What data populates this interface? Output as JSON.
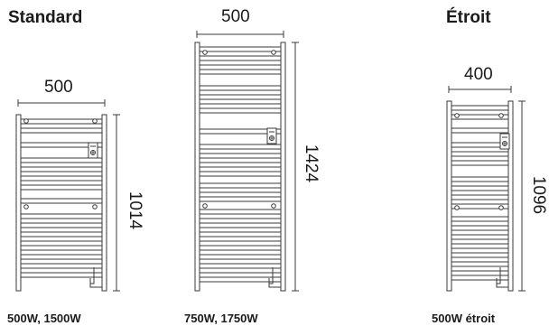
{
  "sections": {
    "standard": {
      "title": "Standard",
      "caption": "500W, 1500W",
      "width_label": "500",
      "height_label": "1014"
    },
    "tall": {
      "caption": "750W, 1750W",
      "width_label": "500",
      "height_label": "1424"
    },
    "narrow": {
      "title": "Étroit",
      "caption": "500W étroit",
      "width_label": "400",
      "height_label": "1096"
    }
  },
  "colors": {
    "line": "#3a3a3a",
    "text": "#1a1a1a"
  }
}
